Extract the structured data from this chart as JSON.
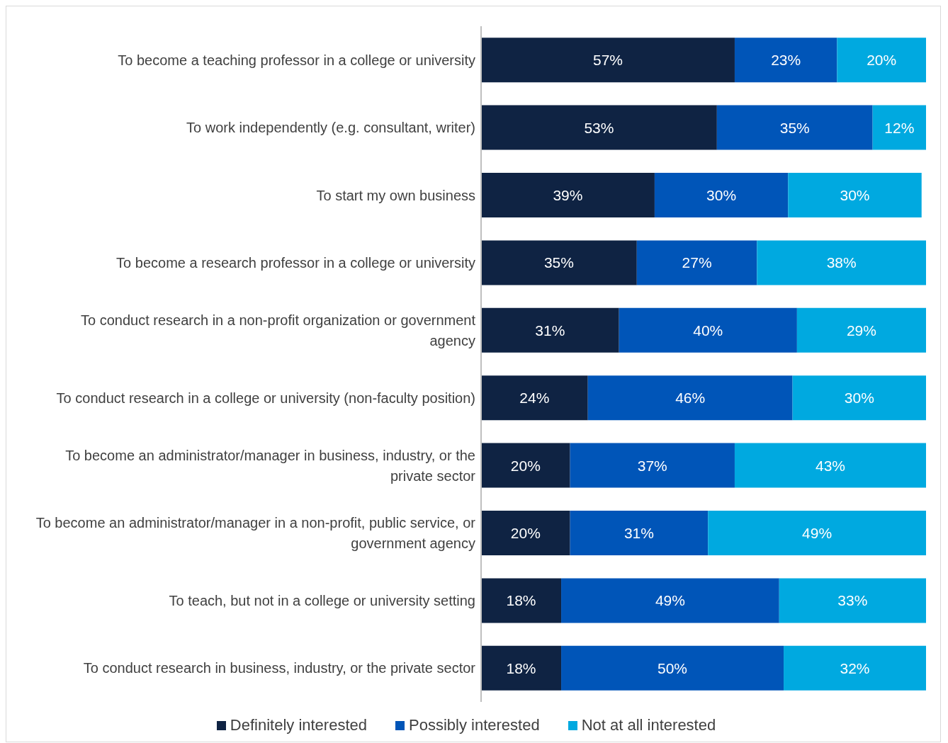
{
  "chart_data": {
    "type": "bar",
    "orientation": "horizontal",
    "stacked": true,
    "categories": [
      "To become a teaching professor in a college or university",
      "To work independently (e.g. consultant, writer)",
      "To start my own business",
      "To become a research professor in a college or university",
      "To conduct research in a non-profit organization or government agency",
      "To conduct research in a college or university (non-faculty position)",
      "To become an administrator/manager in business, industry, or the private sector",
      "To become an administrator/manager in a non-profit, public service, or government agency",
      "To teach, but not in a college or university setting",
      "To conduct research in business, industry, or the private sector"
    ],
    "series": [
      {
        "name": "Definitely interested",
        "color": "#0f2343",
        "values": [
          57,
          53,
          39,
          35,
          31,
          24,
          20,
          20,
          18,
          18
        ],
        "value_labels": [
          "57%",
          "53%",
          "39%",
          "35%",
          "31%",
          "24%",
          "20%",
          "20%",
          "18%",
          "18%"
        ]
      },
      {
        "name": "Possibly interested",
        "color": "#0055b8",
        "values": [
          23,
          35,
          30,
          27,
          40,
          46,
          37,
          31,
          49,
          50
        ],
        "value_labels": [
          "23%",
          "35%",
          "30%",
          "27%",
          "40%",
          "46%",
          "37%",
          "31%",
          "49%",
          "50%"
        ]
      },
      {
        "name": "Not at all interested",
        "color": "#00a9e0",
        "values": [
          20,
          12,
          30,
          38,
          29,
          30,
          43,
          49,
          33,
          32
        ],
        "value_labels": [
          "20%",
          "12%",
          "30%",
          "38%",
          "29%",
          "30%",
          "43%",
          "49%",
          "33%",
          "32%"
        ]
      }
    ],
    "xlim": [
      0,
      100
    ],
    "tick_labels": "y",
    "legend": "bottom"
  }
}
